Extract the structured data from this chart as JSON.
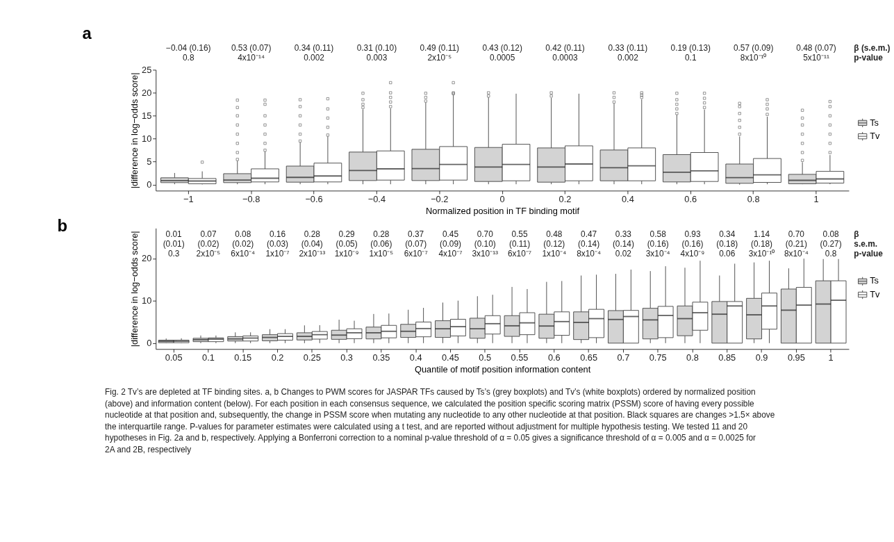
{
  "chart_data": [
    {
      "type": "box",
      "title": "a",
      "xlabel": "Normalized position in TF binding motif",
      "ylabel": "|difference in log−odds score|",
      "categories": [
        "−1",
        "−0.8",
        "−0.6",
        "−0.4",
        "−0.2",
        "0",
        "0.2",
        "0.4",
        "0.6",
        "0.8",
        "1"
      ],
      "ylim": [
        -1.3,
        25
      ],
      "yticks": [
        0,
        5,
        10,
        15,
        20,
        25
      ],
      "grid": false,
      "legend": "right",
      "series": [
        {
          "name": "Ts",
          "color": "#d3d3d3",
          "boxes": [
            {
              "low": 0.1,
              "q1": 0.45,
              "median": 0.9,
              "q3": 1.5,
              "high": 2.55
            },
            {
              "low": 0.1,
              "q1": 0.45,
              "median": 1.0,
              "q3": 2.4,
              "high": 5.2,
              "outliers": [
                5.5,
                7,
                9,
                11,
                13,
                15,
                16.8,
                18.4
              ]
            },
            {
              "low": 0.1,
              "q1": 0.55,
              "median": 1.6,
              "q3": 4.05,
              "high": 9.2,
              "outliers": [
                9.5,
                11,
                13,
                15,
                17,
                18.5
              ]
            },
            {
              "low": 0.1,
              "q1": 0.9,
              "median": 3.1,
              "q3": 7.1,
              "high": 16.4,
              "outliers": [
                16.8,
                17.5,
                18.5,
                19.9
              ]
            },
            {
              "low": 0.1,
              "q1": 0.9,
              "median": 3.5,
              "q3": 7.7,
              "high": 17.9,
              "outliers": [
                18.2,
                19,
                19.9
              ]
            },
            {
              "low": 0.1,
              "q1": 0.7,
              "median": 3.85,
              "q3": 8.1,
              "high": 19.0,
              "outliers": [
                19.3,
                20
              ]
            },
            {
              "low": 0.1,
              "q1": 0.55,
              "median": 3.85,
              "q3": 8.0,
              "high": 18.9,
              "outliers": [
                19.3,
                20
              ]
            },
            {
              "low": 0.1,
              "q1": 0.85,
              "median": 3.7,
              "q3": 7.55,
              "high": 17.65,
              "outliers": [
                18,
                19,
                20
              ]
            },
            {
              "low": 0.1,
              "q1": 0.6,
              "median": 2.7,
              "q3": 6.55,
              "high": 15.2,
              "outliers": [
                15.5,
                16.5,
                17.5,
                18.5,
                19.9
              ]
            },
            {
              "low": 0,
              "q1": 0.3,
              "median": 1.55,
              "q3": 4.5,
              "high": 10.5,
              "outliers": [
                11,
                12.5,
                14,
                15.5,
                17,
                17.7
              ]
            },
            {
              "low": 0.1,
              "q1": 0.2,
              "median": 0.95,
              "q3": 2.25,
              "high": 4.9,
              "outliers": [
                5.3,
                7,
                9,
                11,
                13,
                14.5,
                16.2
              ]
            }
          ]
        },
        {
          "name": "Tv",
          "color": "#ffffff",
          "boxes": [
            {
              "low": 0.05,
              "q1": 0.2,
              "median": 0.8,
              "q3": 1.35,
              "high": 2.9,
              "outliers": [
                4.9
              ]
            },
            {
              "low": 0.1,
              "q1": 0.6,
              "median": 1.4,
              "q3": 3.45,
              "high": 7.2,
              "outliers": [
                7.5,
                9,
                11,
                13,
                15,
                17.5,
                18.4
              ]
            },
            {
              "low": 0.1,
              "q1": 0.6,
              "median": 1.9,
              "q3": 4.7,
              "high": 10.5,
              "outliers": [
                10.8,
                12.5,
                14.5,
                16.5,
                18.7
              ]
            },
            {
              "low": 0.1,
              "q1": 1.0,
              "median": 3.45,
              "q3": 7.35,
              "high": 16.6,
              "outliers": [
                17,
                18,
                19,
                20,
                22.2
              ]
            },
            {
              "low": 0.1,
              "q1": 1.0,
              "median": 4.4,
              "q3": 8.3,
              "high": 19.5,
              "outliers": [
                19.8,
                20,
                22.2
              ]
            },
            {
              "low": 0.1,
              "q1": 0.85,
              "median": 4.4,
              "q3": 8.8,
              "high": 19.8
            },
            {
              "low": 0.1,
              "q1": 0.85,
              "median": 4.5,
              "q3": 8.45,
              "high": 19.8
            },
            {
              "low": 0.1,
              "q1": 0.85,
              "median": 4.1,
              "q3": 8.0,
              "high": 18.6,
              "outliers": [
                19,
                19.5,
                20
              ]
            },
            {
              "low": 0.1,
              "q1": 0.7,
              "median": 3.0,
              "q3": 7.0,
              "high": 16.35,
              "outliers": [
                16.8,
                17.8,
                18.8,
                19.9
              ]
            },
            {
              "low": 0.1,
              "q1": 0.5,
              "median": 2.15,
              "q3": 5.7,
              "high": 14.8,
              "outliers": [
                15.3,
                16.5,
                17.5,
                18.5
              ]
            },
            {
              "low": 0.1,
              "q1": 0.35,
              "median": 1.25,
              "q3": 2.9,
              "high": 6.45,
              "outliers": [
                7,
                9,
                11,
                13,
                15,
                17,
                18.1
              ]
            }
          ]
        }
      ],
      "annotations": [
        "β (s.e.m.)\np-value",
        "−0.04 (0.16)\n0.8",
        "0.53 (0.07)\n4x10⁻¹⁴",
        "0.34  (0.11)\n0.002",
        "0.31  (0.10)\n0.003",
        "0.49  (0.11)\n2x10⁻⁵",
        "0.43  (0.12)\n0.0005",
        "0.42  (0.11)\n0.0003",
        "0.33  (0.11)\n0.002",
        "0.19  (0.13)\n0.1",
        "0.57  (0.09)\n8x10⁻¹⁰",
        "0.48 (0.07)\n5x10⁻¹¹"
      ]
    },
    {
      "type": "box",
      "title": "b",
      "xlabel": "Quantile of motif position information content",
      "ylabel": "|difference in log−odds score|",
      "categories": [
        "0.05",
        "0.1",
        "0.15",
        "0.2",
        "0.25",
        "0.3",
        "0.35",
        "0.4",
        "0.45",
        "0.5",
        "0.55",
        "0.6",
        "0.65",
        "0.7",
        "0.75",
        "0.8",
        "0.85",
        "0.9",
        "0.95",
        "1"
      ],
      "ylim": [
        -1.4,
        27.2
      ],
      "yticks": [
        0,
        10,
        20
      ],
      "grid": false,
      "legend": "right",
      "series": [
        {
          "name": "Ts",
          "color": "#d3d3d3",
          "boxes": [
            {
              "low": 0,
              "q1": 0.1,
              "median": 0.45,
              "q3": 0.7,
              "high": 1.1
            },
            {
              "low": 0,
              "q1": 0.35,
              "median": 0.8,
              "q3": 1.15,
              "high": 1.8
            },
            {
              "low": 0,
              "q1": 0.5,
              "median": 1.0,
              "q3": 1.55,
              "high": 2.55
            },
            {
              "low": 0,
              "q1": 0.55,
              "median": 1.35,
              "q3": 2.0,
              "high": 3.3
            },
            {
              "low": 0,
              "q1": 0.75,
              "median": 1.6,
              "q3": 2.45,
              "high": 4.2
            },
            {
              "low": 0,
              "q1": 0.9,
              "median": 1.9,
              "q3": 3.05,
              "high": 5.55
            },
            {
              "low": 0,
              "q1": 1.0,
              "median": 2.45,
              "q3": 3.8,
              "high": 6.9
            },
            {
              "low": 0,
              "q1": 1.35,
              "median": 2.8,
              "q3": 4.45,
              "high": 7.9
            },
            {
              "low": 0,
              "q1": 1.35,
              "median": 3.4,
              "q3": 5.3,
              "high": 9.6
            },
            {
              "low": 0,
              "q1": 1.15,
              "median": 3.4,
              "q3": 5.9,
              "high": 11.1
            },
            {
              "low": 0,
              "q1": 1.6,
              "median": 4.1,
              "q3": 6.5,
              "high": 13.3
            },
            {
              "low": 0,
              "q1": 1.15,
              "median": 4.05,
              "q3": 6.85,
              "high": 14.5
            },
            {
              "low": 0,
              "q1": 0.85,
              "median": 4.9,
              "q3": 7.4,
              "high": 16.0
            },
            {
              "low": 0,
              "q1": 0,
              "median": 5.6,
              "q3": 7.7,
              "high": 16.4
            },
            {
              "low": 0,
              "q1": 1.0,
              "median": 5.5,
              "q3": 8.25,
              "high": 17.05
            },
            {
              "low": 0,
              "q1": 1.75,
              "median": 5.8,
              "q3": 8.8,
              "high": 17.85
            },
            {
              "low": 0,
              "q1": 0,
              "median": 6.85,
              "q3": 9.85,
              "high": 16.0
            },
            {
              "low": 0,
              "q1": 1.0,
              "median": 6.7,
              "q3": 10.6,
              "high": 19.1
            },
            {
              "low": 0,
              "q1": 0,
              "median": 7.8,
              "q3": 12.8,
              "high": 17.7
            },
            {
              "low": 0,
              "q1": 0,
              "median": 9.25,
              "q3": 14.75,
              "high": 19.9
            }
          ]
        },
        {
          "name": "Tv",
          "color": "#ffffff",
          "boxes": [
            {
              "low": 0,
              "q1": 0.1,
              "median": 0.45,
              "q3": 0.7,
              "high": 1.15
            },
            {
              "low": 0,
              "q1": 0.35,
              "median": 0.95,
              "q3": 1.25,
              "high": 1.8
            },
            {
              "low": 0,
              "q1": 0.5,
              "median": 1.2,
              "q3": 1.7,
              "high": 2.55
            },
            {
              "low": 0,
              "q1": 0.7,
              "median": 1.6,
              "q3": 2.25,
              "high": 3.3
            },
            {
              "low": 0,
              "q1": 0.95,
              "median": 2.0,
              "q3": 2.75,
              "high": 4.25
            },
            {
              "low": 0,
              "q1": 1.05,
              "median": 2.45,
              "q3": 3.4,
              "high": 5.3
            },
            {
              "low": 0,
              "q1": 1.25,
              "median": 2.8,
              "q3": 4.2,
              "high": 7.0
            },
            {
              "low": 0,
              "q1": 1.5,
              "median": 3.45,
              "q3": 5.0,
              "high": 8.35
            },
            {
              "low": 0,
              "q1": 1.7,
              "median": 3.9,
              "q3": 5.65,
              "high": 10.05
            },
            {
              "low": 0,
              "q1": 2.15,
              "median": 4.6,
              "q3": 6.5,
              "high": 11.45
            },
            {
              "low": 0,
              "q1": 2.0,
              "median": 4.8,
              "q3": 7.2,
              "high": 12.8
            },
            {
              "low": 0,
              "q1": 1.85,
              "median": 5.1,
              "q3": 7.4,
              "high": 14.7
            },
            {
              "low": 0,
              "q1": 1.3,
              "median": 5.8,
              "q3": 8.0,
              "high": 16.2
            },
            {
              "low": 0,
              "q1": 0,
              "median": 6.3,
              "q3": 7.75,
              "high": 17.4
            },
            {
              "low": 0,
              "q1": 1.3,
              "median": 6.55,
              "q3": 8.7,
              "high": 18.2
            },
            {
              "low": 0,
              "q1": 3.05,
              "median": 7.2,
              "q3": 9.7,
              "high": 19.5
            },
            {
              "low": 0,
              "q1": 0,
              "median": 8.8,
              "q3": 9.85,
              "high": 18.8
            },
            {
              "low": 0,
              "q1": 3.3,
              "median": 8.8,
              "q3": 11.85,
              "high": 19.5
            },
            {
              "low": 0,
              "q1": 0,
              "median": 9.0,
              "q3": 13.2,
              "high": 20.0
            },
            {
              "low": 0,
              "q1": 0,
              "median": 10.15,
              "q3": 14.75,
              "high": 19.9
            }
          ]
        }
      ],
      "annotations": [
        "β\ns.e.m.\np-value",
        "0.01\n(0.01)\n0.3",
        "0.07\n(0.02)\n2x10⁻⁵",
        "0.08\n(0.02)\n6x10⁻⁴",
        "0.16\n(0.03)\n1x10⁻⁷",
        "0.28\n(0.04)\n2x10⁻¹³",
        "0.29\n(0.05)\n1x10⁻⁹",
        "0.28\n(0.06)\n1x10⁻⁵",
        "0.37\n(0.07)\n6x10⁻⁷",
        "0.45\n(0.09)\n4x10⁻⁷",
        "0.70\n(0.10)\n3x10⁻¹³",
        "0.55\n(0.11)\n6x10⁻⁷",
        "0.48\n(0.12)\n1x10⁻⁴",
        "0.47\n(0.14)\n8x10⁻⁴",
        "0.33\n(0.14)\n0.02",
        "0.58\n(0.16)\n3x10⁻⁴",
        "0.93\n(0.16)\n4x10⁻⁹",
        "0.34\n(0.18)\n0.06",
        "1.14\n(0.18)\n3x10⁻¹⁰",
        "0.70\n(0.21)\n8x10⁻⁴",
        "0.08\n(0.27)\n0.8",
        "Fig. 2 Tv’s are depleted at TF binding sites. a, b Changes to PWM scores for JASPAR TFs caused by Ts’s (grey boxplots) and Tv’s (white boxplots) ordered by normalized position (above) and information content (below). For each position in each consensus sequence, we calculated the position specific scoring matrix (PSSM) score of having every possible nucleotide at that position and, subsequently, the change in PSSM score when mutating any nucleotide to any other nucleotide at that position. Black squares are changes >1.5× above the interquartile range. P-values for parameter estimates were calculated using a t test, and are reported without adjustment for multiple hypothesis testing. We tested 11 and 20 hypotheses in Fig. 2a and b, respectively. Applying a Bonferroni correction to a nominal p-value threshold of α = 0.05 gives a significance threshold of α = 0.005 and α = 0.0025 for 2A and 2B, respectively"
      ]
    }
  ]
}
